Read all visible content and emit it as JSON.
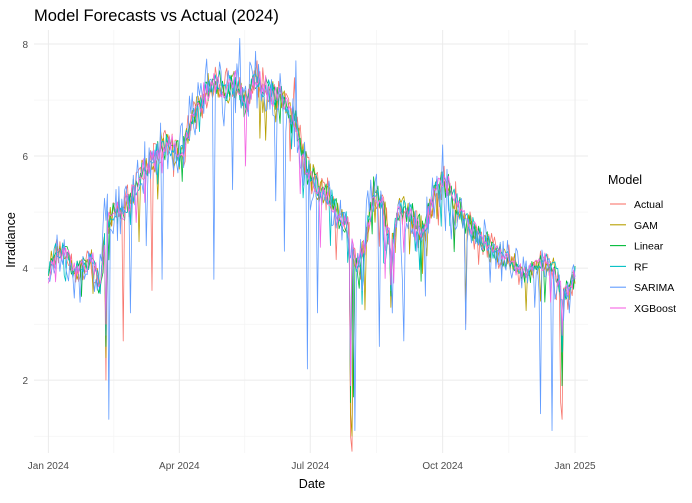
{
  "chart_data": {
    "type": "line",
    "title": "Model Forecasts vs Actual (2024)",
    "xlabel": "Date",
    "ylabel": "Irradiance",
    "xlim": [
      -10,
      375
    ],
    "ylim": [
      0.7,
      8.25
    ],
    "x_ticks": [
      {
        "day": 0,
        "label": "Jan 2024"
      },
      {
        "day": 91,
        "label": "Apr 2024"
      },
      {
        "day": 182,
        "label": "Jul 2024"
      },
      {
        "day": 274,
        "label": "Oct 2024"
      },
      {
        "day": 366,
        "label": "Jan 2025"
      }
    ],
    "y_ticks": [
      2,
      4,
      6,
      8
    ],
    "legend": {
      "title": "Model",
      "position": "right"
    },
    "x_unit": "day of year 2024 (0 = Jan 1)",
    "base": {
      "days": [
        0,
        5,
        12,
        18,
        25,
        31,
        36,
        40,
        45,
        52,
        58,
        65,
        72,
        79,
        85,
        92,
        100,
        108,
        115,
        122,
        130,
        137,
        144,
        152,
        158,
        165,
        172,
        178,
        184,
        190,
        196,
        202,
        208,
        214,
        220,
        226,
        232,
        238,
        244,
        250,
        256,
        262,
        268,
        274,
        281,
        288,
        295,
        302,
        309,
        316,
        323,
        330,
        337,
        344,
        351,
        358,
        362,
        366
      ],
      "values": [
        3.9,
        4.3,
        4.3,
        4.0,
        4.0,
        4.2,
        3.6,
        4.8,
        5.0,
        5.0,
        5.3,
        5.7,
        5.9,
        6.2,
        6.2,
        6.0,
        6.6,
        7.1,
        7.3,
        7.2,
        7.3,
        6.9,
        7.4,
        7.2,
        7.1,
        6.9,
        6.6,
        5.9,
        5.6,
        5.3,
        5.3,
        4.9,
        4.8,
        4.0,
        4.4,
        5.4,
        5.2,
        4.4,
        5.1,
        5.0,
        4.8,
        4.7,
        5.3,
        5.6,
        5.3,
        4.9,
        4.7,
        4.5,
        4.3,
        4.2,
        4.1,
        3.9,
        4.0,
        4.1,
        4.0,
        3.6,
        3.6,
        3.9
      ]
    },
    "series": [
      {
        "name": "Actual",
        "color": "#F8766D",
        "noise": 0.3,
        "spikes": [
          [
            40,
            2.0
          ],
          [
            52,
            2.7
          ],
          [
            72,
            3.6
          ],
          [
            145,
            7.7
          ],
          [
            171,
            7.4
          ],
          [
            210,
            1.0
          ],
          [
            211,
            0.73
          ],
          [
            217,
            3.8
          ],
          [
            238,
            3.8
          ],
          [
            290,
            3.0
          ],
          [
            352,
            3.5
          ],
          [
            356,
            1.6
          ],
          [
            357,
            1.3
          ]
        ]
      },
      {
        "name": "GAM",
        "color": "#B79F00",
        "noise": 0.25,
        "spikes": [
          [
            40,
            2.4
          ],
          [
            210,
            1.4
          ],
          [
            211,
            1.0
          ],
          [
            238,
            3.3
          ],
          [
            290,
            3.3
          ],
          [
            357,
            1.9
          ]
        ]
      },
      {
        "name": "Linear",
        "color": "#00BA38",
        "noise": 0.25,
        "spikes": [
          [
            40,
            2.6
          ],
          [
            210,
            1.6
          ],
          [
            212,
            1.7
          ],
          [
            238,
            3.5
          ],
          [
            357,
            1.9
          ]
        ]
      },
      {
        "name": "RF",
        "color": "#00BFC4",
        "noise": 0.2,
        "spikes": [
          [
            40,
            2.8
          ],
          [
            210,
            1.9
          ],
          [
            238,
            3.6
          ],
          [
            357,
            2.5
          ]
        ]
      },
      {
        "name": "SARIMA",
        "color": "#619CFF",
        "noise": 0.45,
        "lag": 1.5,
        "spikes": [
          [
            42,
            1.3
          ],
          [
            57,
            3.2
          ],
          [
            68,
            4.4
          ],
          [
            79,
            3.8
          ],
          [
            115,
            3.8
          ],
          [
            128,
            5.4
          ],
          [
            133,
            8.1
          ],
          [
            158,
            5.2
          ],
          [
            164,
            4.3
          ],
          [
            172,
            7.7
          ],
          [
            180,
            2.2
          ],
          [
            187,
            3.2
          ],
          [
            213,
            1.1
          ],
          [
            218,
            3.6
          ],
          [
            230,
            2.6
          ],
          [
            239,
            3.2
          ],
          [
            247,
            2.7
          ],
          [
            262,
            3.5
          ],
          [
            274,
            6.2
          ],
          [
            290,
            2.9
          ],
          [
            338,
            3.3
          ],
          [
            342,
            1.4
          ],
          [
            350,
            1.1
          ],
          [
            362,
            3.2
          ]
        ]
      },
      {
        "name": "XGBoost",
        "color": "#F564E3",
        "noise": 0.2,
        "spikes": [
          [
            40,
            3.0
          ],
          [
            210,
            1.9
          ],
          [
            238,
            3.7
          ],
          [
            357,
            2.8
          ]
        ]
      }
    ]
  }
}
